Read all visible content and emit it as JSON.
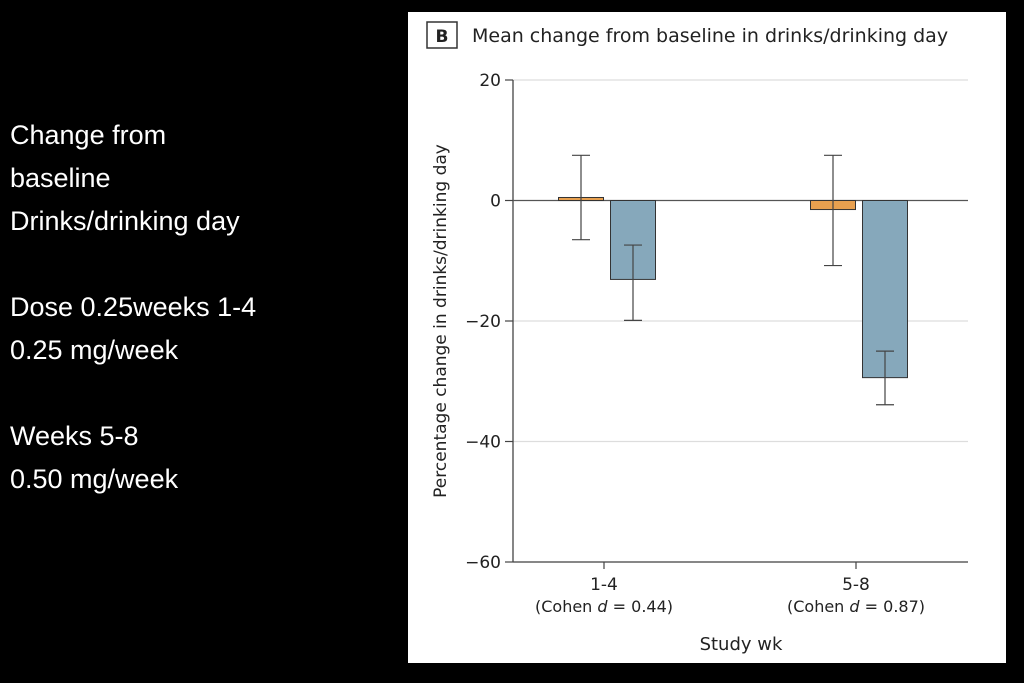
{
  "side_text": [
    "Change from",
    "baseline",
    "Drinks/drinking day",
    "",
    "Dose 0.25weeks 1-4",
    "0.25 mg/week",
    "",
    "Weeks 5-8",
    "0.50 mg/week"
  ],
  "chart_data": {
    "type": "bar",
    "panel_label": "B",
    "title": "Mean change from baseline in drinks/drinking day",
    "xlabel": "Study wk",
    "ylabel": "Percentage change in drinks/drinking day",
    "ylim": [
      -60,
      20
    ],
    "yticks": [
      20,
      0,
      -20,
      -40,
      -60
    ],
    "yticklabels": [
      "20",
      "0",
      "−20",
      "−40",
      "−60"
    ],
    "categories": [
      "1-4",
      "5-8"
    ],
    "category_sublabels": [
      [
        "(Cohen ",
        "d",
        " = 0.44)"
      ],
      [
        "(Cohen ",
        "d",
        " = 0.87)"
      ]
    ],
    "grid": "horizontal",
    "series": [
      {
        "color": "#e8a04f",
        "values": [
          0.5,
          -1.5
        ],
        "error_low": [
          -6.5,
          -10.8
        ],
        "error_high": [
          7.5,
          7.5
        ]
      },
      {
        "color": "#86a8bb",
        "values": [
          -13.1,
          -29.4
        ],
        "error_low": [
          -19.9,
          -33.9
        ],
        "error_high": [
          -7.4,
          -25.0
        ]
      }
    ]
  }
}
